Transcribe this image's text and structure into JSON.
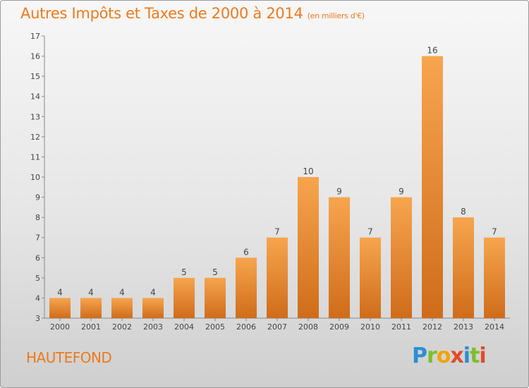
{
  "title": "Autres Impôts et Taxes de 2000 à 2014",
  "title_unit": "(en milliers d'€)",
  "location": "HAUTEFOND",
  "logo": {
    "text": "Proxiti",
    "letters": [
      "P",
      "r",
      "o",
      "x",
      "i",
      "t",
      "i"
    ]
  },
  "colors": {
    "accent": "#ec7a1c",
    "bar_light": "#f7a54e",
    "bar_dark": "#cf6c1a"
  },
  "chart_data": {
    "type": "bar",
    "title": "Autres Impôts et Taxes de 2000 à 2014",
    "xlabel": "",
    "ylabel": "",
    "categories": [
      "2000",
      "2001",
      "2002",
      "2003",
      "2004",
      "2005",
      "2006",
      "2007",
      "2008",
      "2009",
      "2010",
      "2011",
      "2012",
      "2013",
      "2014"
    ],
    "values": [
      4,
      4,
      4,
      4,
      5,
      5,
      6,
      7,
      10,
      9,
      7,
      9,
      16,
      8,
      7
    ],
    "ylim": [
      3,
      17
    ],
    "yticks": [
      3,
      4,
      5,
      6,
      7,
      8,
      9,
      10,
      11,
      12,
      13,
      14,
      15,
      16,
      17
    ],
    "grid": false,
    "data_labels": true
  }
}
